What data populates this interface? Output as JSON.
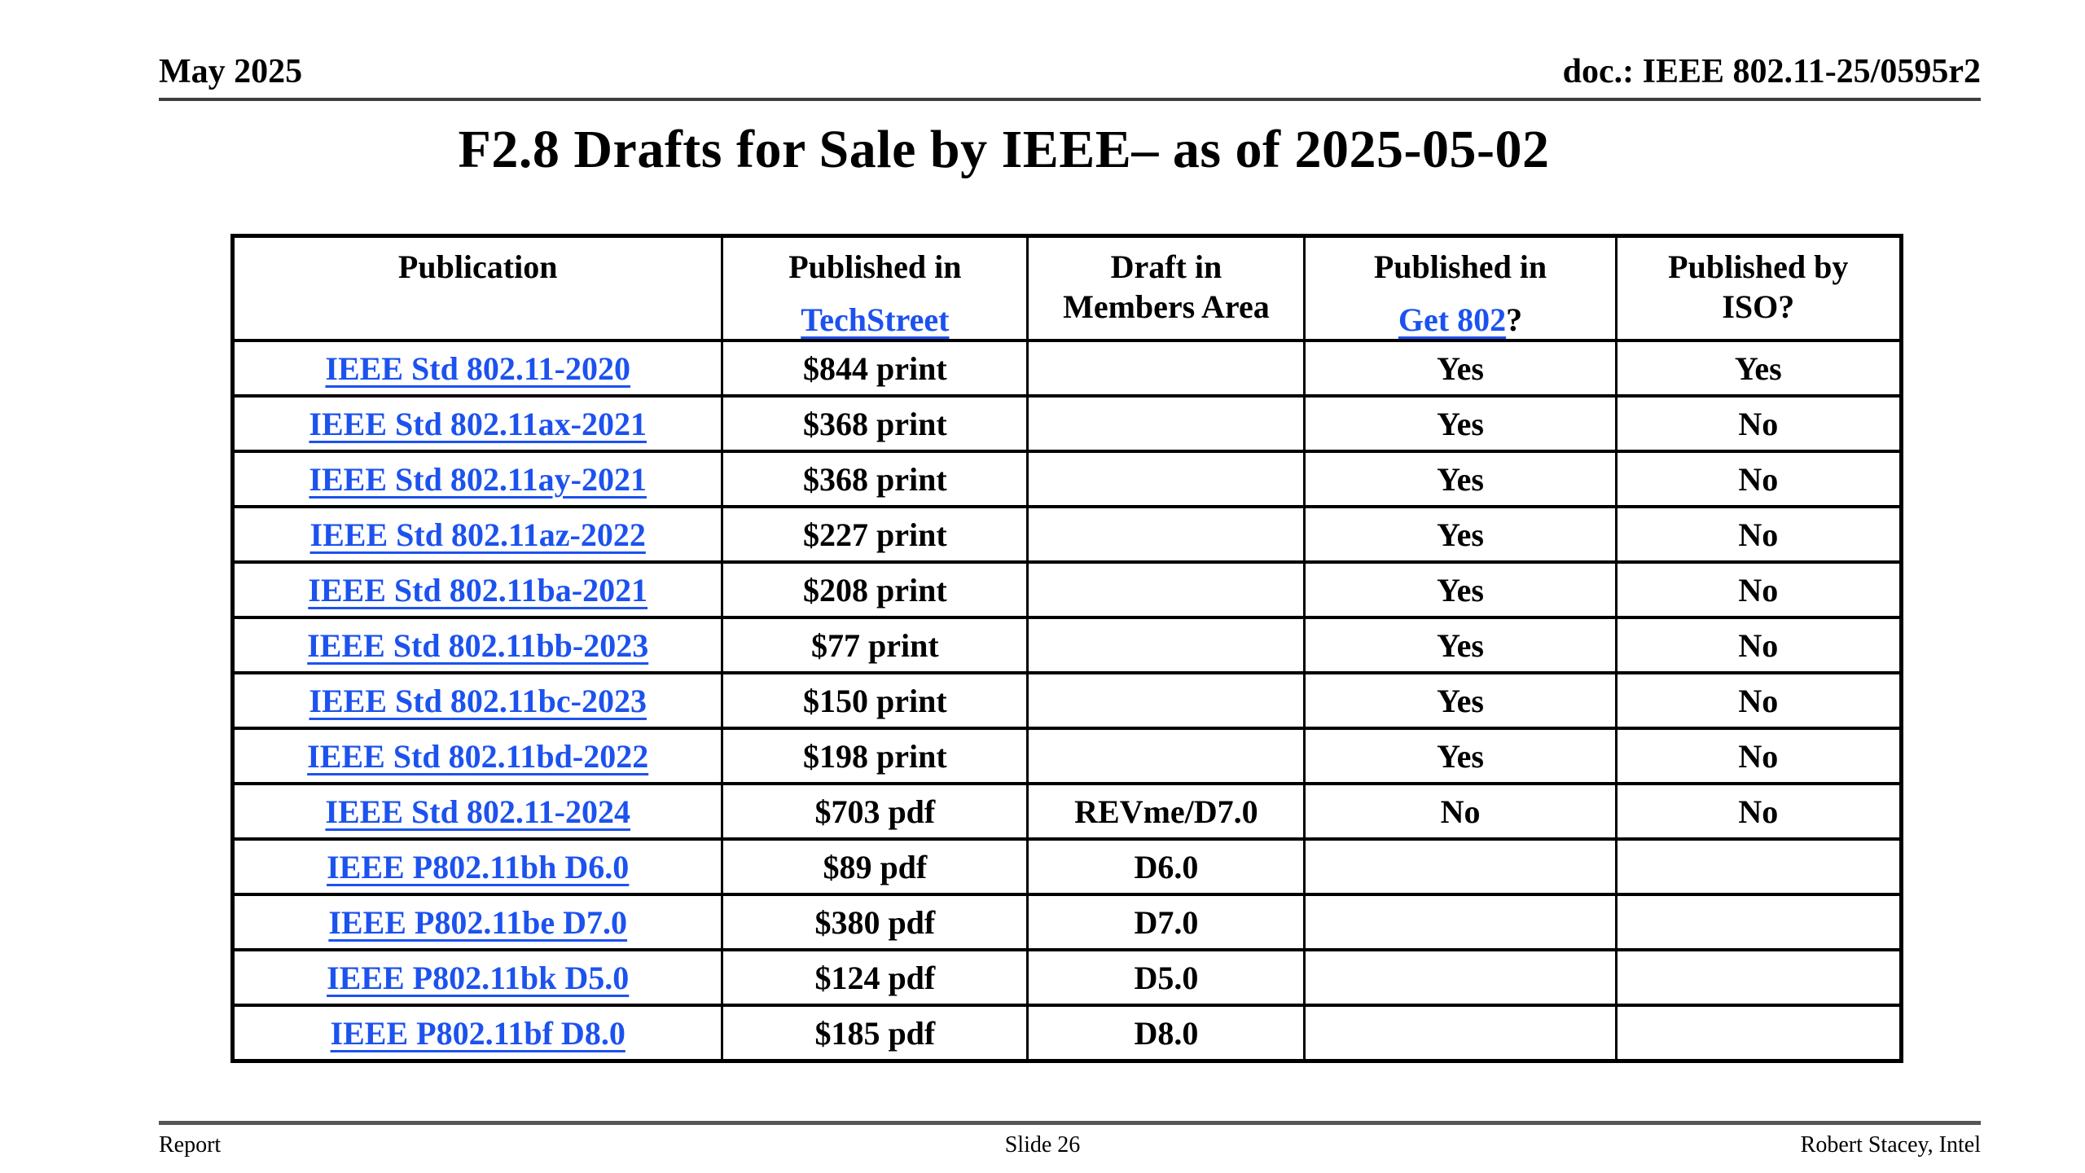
{
  "page": {
    "date": "May 2025",
    "doc_id": "doc.: IEEE 802.11-25/0595r2",
    "title": "F2.8 Drafts for Sale by IEEE– as of 2025-05-02"
  },
  "colors": {
    "link": "#1c52ee",
    "text": "#000000",
    "border": "#000000",
    "rule_gray": "#555555"
  },
  "table": {
    "headers": {
      "publication": {
        "label": "Publication"
      },
      "techstreet": {
        "line1": "Published in",
        "link": "TechStreet"
      },
      "draft": {
        "line1": "Draft in",
        "line2": "Members Area"
      },
      "get802": {
        "line1": "Published in",
        "link": "Get 802",
        "suffix": "?"
      },
      "iso": {
        "line1": "Published by",
        "line2": "ISO?"
      }
    },
    "rows": [
      {
        "publication": "IEEE Std 802.11-2020",
        "techstreet": "$844 print",
        "draft": "",
        "get802": "Yes",
        "iso": "Yes"
      },
      {
        "publication": "IEEE Std 802.11ax-2021",
        "techstreet": "$368 print",
        "draft": "",
        "get802": "Yes",
        "iso": "No"
      },
      {
        "publication": "IEEE Std 802.11ay-2021",
        "techstreet": "$368 print",
        "draft": "",
        "get802": "Yes",
        "iso": "No"
      },
      {
        "publication": "IEEE Std 802.11az-2022",
        "techstreet": "$227 print",
        "draft": "",
        "get802": "Yes",
        "iso": "No"
      },
      {
        "publication": "IEEE Std 802.11ba-2021",
        "techstreet": "$208 print",
        "draft": "",
        "get802": "Yes",
        "iso": "No"
      },
      {
        "publication": "IEEE Std 802.11bb-2023",
        "techstreet": "$77 print",
        "draft": "",
        "get802": "Yes",
        "iso": "No"
      },
      {
        "publication": "IEEE Std 802.11bc-2023",
        "techstreet": "$150 print",
        "draft": "",
        "get802": "Yes",
        "iso": "No"
      },
      {
        "publication": "IEEE Std 802.11bd-2022",
        "techstreet": "$198 print",
        "draft": "",
        "get802": "Yes",
        "iso": "No"
      },
      {
        "publication": "IEEE Std 802.11-2024",
        "techstreet": "$703 pdf",
        "draft": "REVme/D7.0",
        "get802": "No",
        "iso": "No"
      },
      {
        "publication": "IEEE P802.11bh D6.0",
        "techstreet": "$89 pdf",
        "draft": "D6.0",
        "get802": "",
        "iso": ""
      },
      {
        "publication": "IEEE P802.11be D7.0",
        "techstreet": "$380 pdf",
        "draft": "D7.0",
        "get802": "",
        "iso": ""
      },
      {
        "publication": "IEEE P802.11bk D5.0",
        "techstreet": "$124 pdf",
        "draft": "D5.0",
        "get802": "",
        "iso": ""
      },
      {
        "publication": "IEEE P802.11bf D8.0",
        "techstreet": "$185 pdf",
        "draft": "D8.0",
        "get802": "",
        "iso": ""
      }
    ]
  },
  "footer": {
    "left": "Report",
    "center": "Slide 26",
    "right": "Robert Stacey, Intel"
  }
}
